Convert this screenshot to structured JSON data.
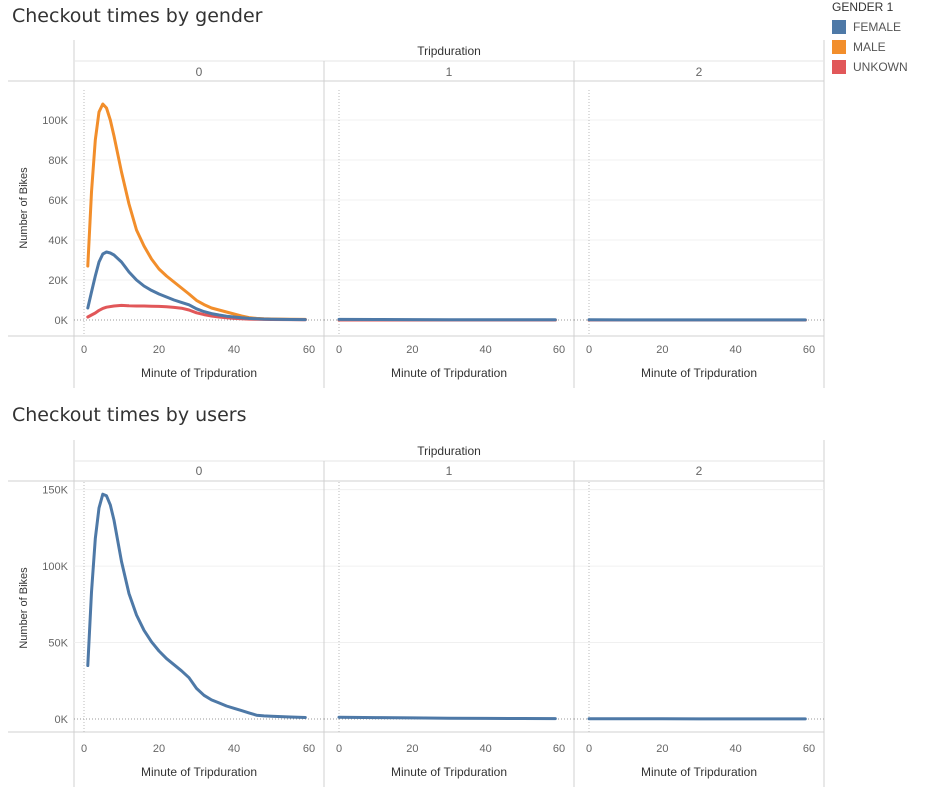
{
  "titles": {
    "gender": "Checkout times by gender",
    "users": "Checkout times by users"
  },
  "legend": {
    "title": "GENDER 1",
    "items": [
      {
        "label": "FEMALE",
        "color": "#4e79a7"
      },
      {
        "label": "MALE",
        "color": "#f28e2b"
      },
      {
        "label": "UNKOWN",
        "color": "#e15759"
      }
    ]
  },
  "chart_data": [
    {
      "type": "line",
      "title": "Checkout times by gender",
      "column_header": "Tripduration",
      "panels": [
        "0",
        "1",
        "2"
      ],
      "xlabel": "Minute of Tripduration",
      "ylabel": "Number of Bikes",
      "xlim": [
        0,
        60
      ],
      "ylim": [
        0,
        115000
      ],
      "x_ticks": [
        0,
        20,
        40,
        60
      ],
      "y_ticks": [
        0,
        20000,
        40000,
        60000,
        80000,
        100000
      ],
      "y_tick_labels": [
        "0K",
        "20K",
        "40K",
        "60K",
        "80K",
        "100K"
      ],
      "grid": true,
      "legend_position": "top-right",
      "series": [
        {
          "name": "FEMALE",
          "color": "#4e79a7",
          "panels": [
            {
              "x": [
                1,
                2,
                3,
                4,
                5,
                6,
                7,
                8,
                10,
                12,
                14,
                16,
                18,
                20,
                22,
                24,
                26,
                28,
                30,
                32,
                34,
                36,
                38,
                40,
                42,
                44,
                46,
                48,
                50,
                55,
                59
              ],
              "y": [
                6000,
                14000,
                22000,
                29000,
                33000,
                34000,
                33500,
                32500,
                29000,
                24000,
                20000,
                17000,
                14800,
                13000,
                11500,
                10000,
                8800,
                7600,
                5600,
                4200,
                3200,
                2500,
                1900,
                1500,
                1100,
                800,
                600,
                450,
                350,
                250,
                200
              ]
            },
            {
              "x": [
                0,
                10,
                20,
                30,
                40,
                50,
                59
              ],
              "y": [
                300,
                250,
                200,
                150,
                120,
                100,
                80
              ]
            },
            {
              "x": [
                0,
                10,
                20,
                30,
                40,
                50,
                59
              ],
              "y": [
                80,
                70,
                60,
                50,
                40,
                30,
                30
              ]
            }
          ]
        },
        {
          "name": "MALE",
          "color": "#f28e2b",
          "panels": [
            {
              "x": [
                1,
                2,
                3,
                4,
                5,
                6,
                7,
                8,
                10,
                12,
                14,
                16,
                18,
                20,
                22,
                24,
                26,
                28,
                30,
                32,
                34,
                36,
                38,
                40,
                42,
                44,
                46,
                48,
                50,
                55,
                59
              ],
              "y": [
                27000,
                64000,
                90000,
                104000,
                108000,
                106000,
                100000,
                92000,
                74000,
                58000,
                45000,
                37000,
                30500,
                25500,
                22000,
                19000,
                16000,
                13000,
                9800,
                7700,
                6000,
                5000,
                4000,
                3000,
                2000,
                1200,
                800,
                600,
                500,
                350,
                300
              ]
            },
            {
              "x": [
                0,
                59
              ],
              "y": [
                0,
                0
              ]
            },
            {
              "x": [
                0,
                59
              ],
              "y": [
                0,
                0
              ]
            }
          ]
        },
        {
          "name": "UNKOWN",
          "color": "#e15759",
          "panels": [
            {
              "x": [
                1,
                2,
                3,
                4,
                5,
                6,
                8,
                10,
                12,
                14,
                16,
                18,
                20,
                22,
                24,
                26,
                28,
                30,
                32,
                34,
                36,
                38,
                40,
                42,
                44,
                46,
                48,
                50,
                55,
                59
              ],
              "y": [
                1500,
                2500,
                3500,
                4800,
                5800,
                6400,
                7000,
                7300,
                7100,
                7000,
                7000,
                6900,
                6800,
                6600,
                6300,
                5900,
                5000,
                3600,
                2700,
                2000,
                1500,
                1100,
                800,
                600,
                450,
                350,
                300,
                250,
                200,
                150
              ]
            },
            {
              "x": [
                0,
                59
              ],
              "y": [
                0,
                0
              ]
            },
            {
              "x": [
                0,
                59
              ],
              "y": [
                0,
                0
              ]
            }
          ]
        }
      ]
    },
    {
      "type": "line",
      "title": "Checkout times by users",
      "column_header": "Tripduration",
      "panels": [
        "0",
        "1",
        "2"
      ],
      "xlabel": "Minute of Tripduration",
      "ylabel": "Number of Bikes",
      "xlim": [
        0,
        60
      ],
      "ylim": [
        0,
        155000
      ],
      "x_ticks": [
        0,
        20,
        40,
        60
      ],
      "y_ticks": [
        0,
        50000,
        100000,
        150000
      ],
      "y_tick_labels": [
        "0K",
        "50K",
        "100K",
        "150K"
      ],
      "grid": true,
      "series": [
        {
          "color": "#4e79a7",
          "panels": [
            {
              "x": [
                1,
                2,
                3,
                4,
                5,
                6,
                7,
                8,
                10,
                12,
                14,
                16,
                18,
                20,
                22,
                24,
                26,
                28,
                30,
                32,
                34,
                36,
                38,
                40,
                42,
                44,
                46,
                48,
                50,
                55,
                59
              ],
              "y": [
                35000,
                83000,
                118000,
                138000,
                147000,
                146000,
                140000,
                130000,
                103000,
                82000,
                68000,
                58000,
                50500,
                44500,
                39500,
                35500,
                31500,
                27000,
                20000,
                15500,
                12500,
                10500,
                8500,
                7000,
                5500,
                4000,
                2500,
                2000,
                1800,
                1300,
                1000
              ]
            },
            {
              "x": [
                0,
                10,
                20,
                30,
                40,
                50,
                59
              ],
              "y": [
                1200,
                900,
                700,
                500,
                400,
                300,
                250
              ]
            },
            {
              "x": [
                0,
                10,
                20,
                30,
                40,
                50,
                59
              ],
              "y": [
                150,
                130,
                110,
                90,
                80,
                70,
                60
              ]
            }
          ]
        }
      ]
    }
  ]
}
